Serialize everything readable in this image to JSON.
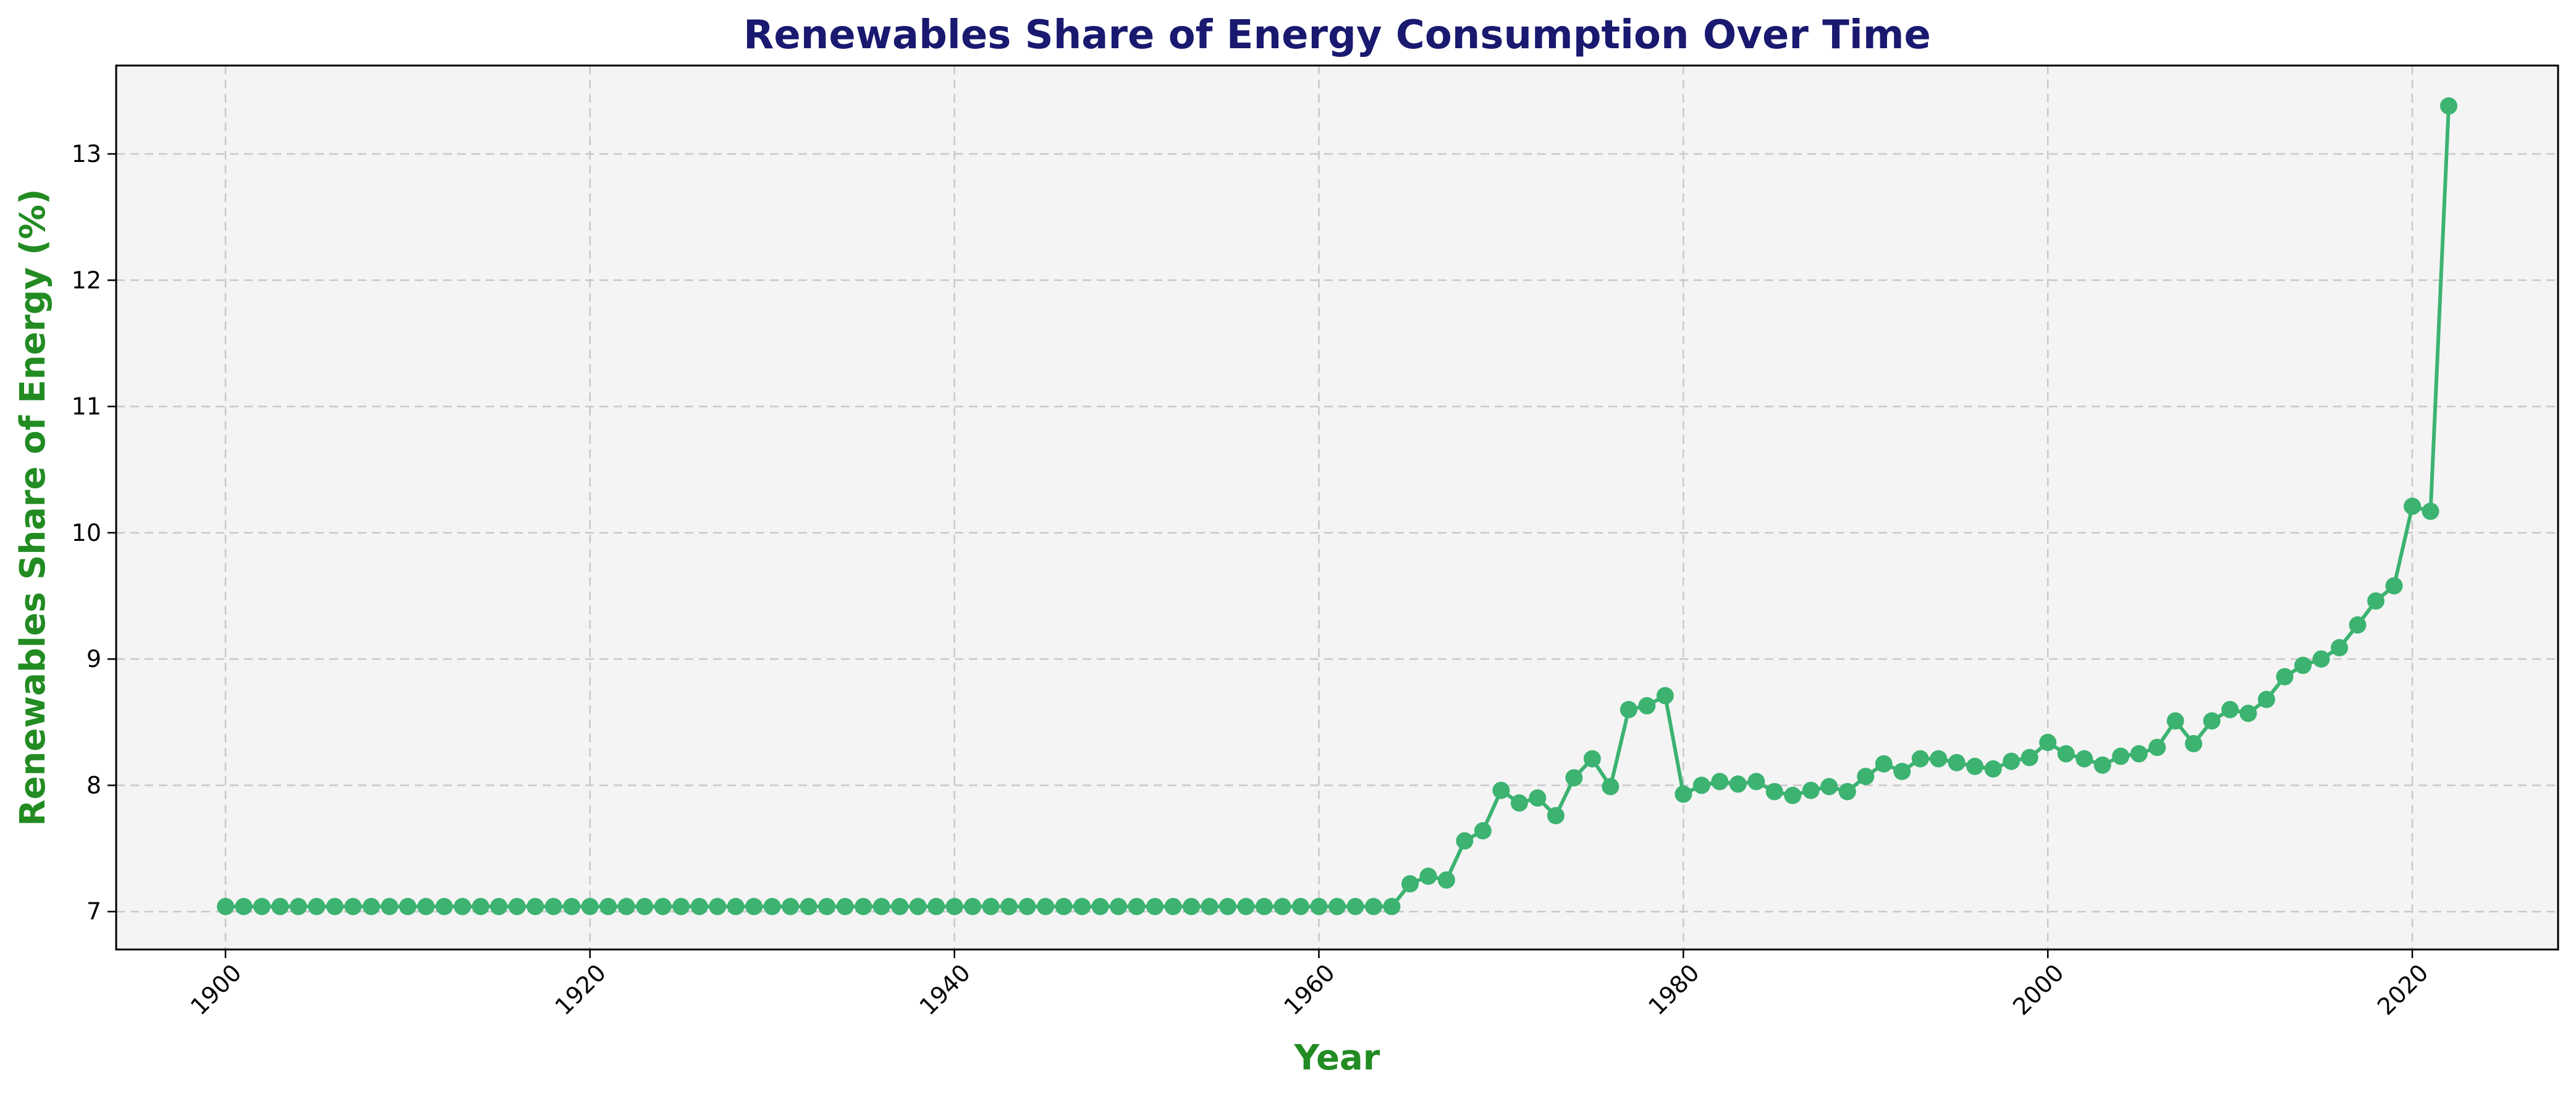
{
  "chart_data": {
    "type": "line",
    "title": "Renewables Share of Energy Consumption Over Time",
    "xlabel": "Year",
    "ylabel": "Renewables Share of Energy (%)",
    "xlim": [
      1894,
      2028
    ],
    "ylim": [
      6.7,
      13.7
    ],
    "x_ticks": [
      1900,
      1920,
      1940,
      1960,
      1980,
      2000,
      2020
    ],
    "y_ticks": [
      7,
      8,
      9,
      10,
      11,
      12,
      13
    ],
    "grid": true,
    "markers": true,
    "series": [
      {
        "x": [
          1900,
          1901,
          1902,
          1903,
          1904,
          1905,
          1906,
          1907,
          1908,
          1909,
          1910,
          1911,
          1912,
          1913,
          1914,
          1915,
          1916,
          1917,
          1918,
          1919,
          1920,
          1921,
          1922,
          1923,
          1924,
          1925,
          1926,
          1927,
          1928,
          1929,
          1930,
          1931,
          1932,
          1933,
          1934,
          1935,
          1936,
          1937,
          1938,
          1939,
          1940,
          1941,
          1942,
          1943,
          1944,
          1945,
          1946,
          1947,
          1948,
          1949,
          1950,
          1951,
          1952,
          1953,
          1954,
          1955,
          1956,
          1957,
          1958,
          1959,
          1960,
          1961,
          1962,
          1963,
          1964,
          1965,
          1966,
          1967,
          1968,
          1969,
          1970,
          1971,
          1972,
          1973,
          1974,
          1975,
          1976,
          1977,
          1978,
          1979,
          1980,
          1981,
          1982,
          1983,
          1984,
          1985,
          1986,
          1987,
          1988,
          1989,
          1990,
          1991,
          1992,
          1993,
          1994,
          1995,
          1996,
          1997,
          1998,
          1999,
          2000,
          2001,
          2002,
          2003,
          2004,
          2005,
          2006,
          2007,
          2008,
          2009,
          2010,
          2011,
          2012,
          2013,
          2014,
          2015,
          2016,
          2017,
          2018,
          2019,
          2020,
          2021,
          2022
        ],
        "values": [
          7.04,
          7.04,
          7.04,
          7.04,
          7.04,
          7.04,
          7.04,
          7.04,
          7.04,
          7.04,
          7.04,
          7.04,
          7.04,
          7.04,
          7.04,
          7.04,
          7.04,
          7.04,
          7.04,
          7.04,
          7.04,
          7.04,
          7.04,
          7.04,
          7.04,
          7.04,
          7.04,
          7.04,
          7.04,
          7.04,
          7.04,
          7.04,
          7.04,
          7.04,
          7.04,
          7.04,
          7.04,
          7.04,
          7.04,
          7.04,
          7.04,
          7.04,
          7.04,
          7.04,
          7.04,
          7.04,
          7.04,
          7.04,
          7.04,
          7.04,
          7.04,
          7.04,
          7.04,
          7.04,
          7.04,
          7.04,
          7.04,
          7.04,
          7.04,
          7.04,
          7.04,
          7.04,
          7.04,
          7.04,
          7.04,
          7.22,
          7.28,
          7.25,
          7.56,
          7.64,
          7.96,
          7.86,
          7.9,
          7.76,
          8.06,
          8.21,
          7.99,
          8.6,
          8.63,
          8.71,
          7.93,
          8.0,
          8.03,
          8.01,
          8.03,
          7.95,
          7.92,
          7.96,
          7.99,
          7.95,
          8.07,
          8.17,
          8.11,
          8.21,
          8.21,
          8.18,
          8.15,
          8.13,
          8.19,
          8.22,
          8.34,
          8.25,
          8.21,
          8.16,
          8.23,
          8.25,
          8.3,
          8.51,
          8.33,
          8.51,
          8.6,
          8.57,
          8.68,
          8.86,
          8.95,
          9.0,
          9.09,
          9.27,
          9.46,
          9.58,
          10.21,
          10.17,
          13.38
        ]
      }
    ]
  },
  "colors": {
    "line": "#3cb371",
    "title": "#191970",
    "axis_labels": "#228b22",
    "plot_bg": "#f4f4f4"
  }
}
